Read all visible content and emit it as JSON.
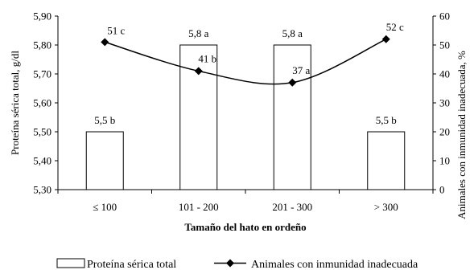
{
  "chart_data": {
    "type": "bar",
    "categories": [
      "≤ 100",
      "101 - 200",
      "201 - 300",
      "> 300"
    ],
    "xlabel": "Tamaño del hato en ordeño",
    "ylabel": "Proteína sérica total, g/dl",
    "y2label": "Animales con inmunidad inadecuada, %",
    "ylim": [
      5.3,
      5.9
    ],
    "yticks": [
      "5,30",
      "5,40",
      "5,50",
      "5,60",
      "5,70",
      "5,80",
      "5,90"
    ],
    "y2lim": [
      0,
      60
    ],
    "y2ticks": [
      "0",
      "10",
      "20",
      "30",
      "40",
      "50",
      "60"
    ],
    "grid": false,
    "legend_position": "bottom",
    "series": [
      {
        "name": "Proteína sérica total",
        "type": "bar",
        "axis": "left",
        "values": [
          5.5,
          5.8,
          5.8,
          5.5
        ],
        "labels": [
          "5,5 b",
          "5,8 a",
          "5,8 a",
          "5,5 b"
        ]
      },
      {
        "name": "Animales con inmunidad inadecuada",
        "type": "line",
        "axis": "right",
        "marker": "diamond",
        "smooth": true,
        "values": [
          51,
          41,
          37,
          52
        ],
        "labels": [
          "51 c",
          "41 b",
          "37 a",
          "52 c"
        ]
      }
    ]
  }
}
